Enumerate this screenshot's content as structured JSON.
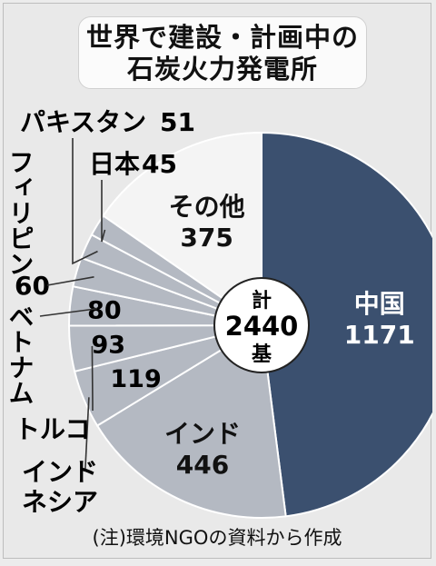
{
  "title_lines": [
    "世界で建設・計画中の",
    "石炭火力発電所"
  ],
  "note": "(注)環境NGOの資料から作成",
  "center_label": {
    "top": "計",
    "value": "2440",
    "bottom": "基"
  },
  "colors": {
    "background": "#e9e9e9",
    "china": "#3b506f",
    "other_gray": "#b4b9c2",
    "other_white": "#f4f4f4",
    "outline": "#ffffff",
    "leader": "#333333"
  },
  "chart_data": {
    "type": "pie",
    "title": "世界で建設・計画中の石炭火力発電所",
    "total": 2440,
    "total_unit": "基",
    "start": "top, clockwise",
    "slices": [
      {
        "label": "中国",
        "value": 1171,
        "color": "#3b506f"
      },
      {
        "label": "インド",
        "value": 446,
        "color": "#b4b9c2"
      },
      {
        "label": "インドネシア",
        "value": 119,
        "color": "#b4b9c2"
      },
      {
        "label": "トルコ",
        "value": 93,
        "color": "#b4b9c2"
      },
      {
        "label": "ベトナム",
        "value": 80,
        "color": "#b4b9c2"
      },
      {
        "label": "フィリピン",
        "value": 60,
        "color": "#b4b9c2"
      },
      {
        "label": "パキスタン",
        "value": 51,
        "color": "#b4b9c2"
      },
      {
        "label": "日本",
        "value": 45,
        "color": "#b4b9c2"
      },
      {
        "label": "その他",
        "value": 375,
        "color": "#f4f4f4"
      }
    ]
  }
}
